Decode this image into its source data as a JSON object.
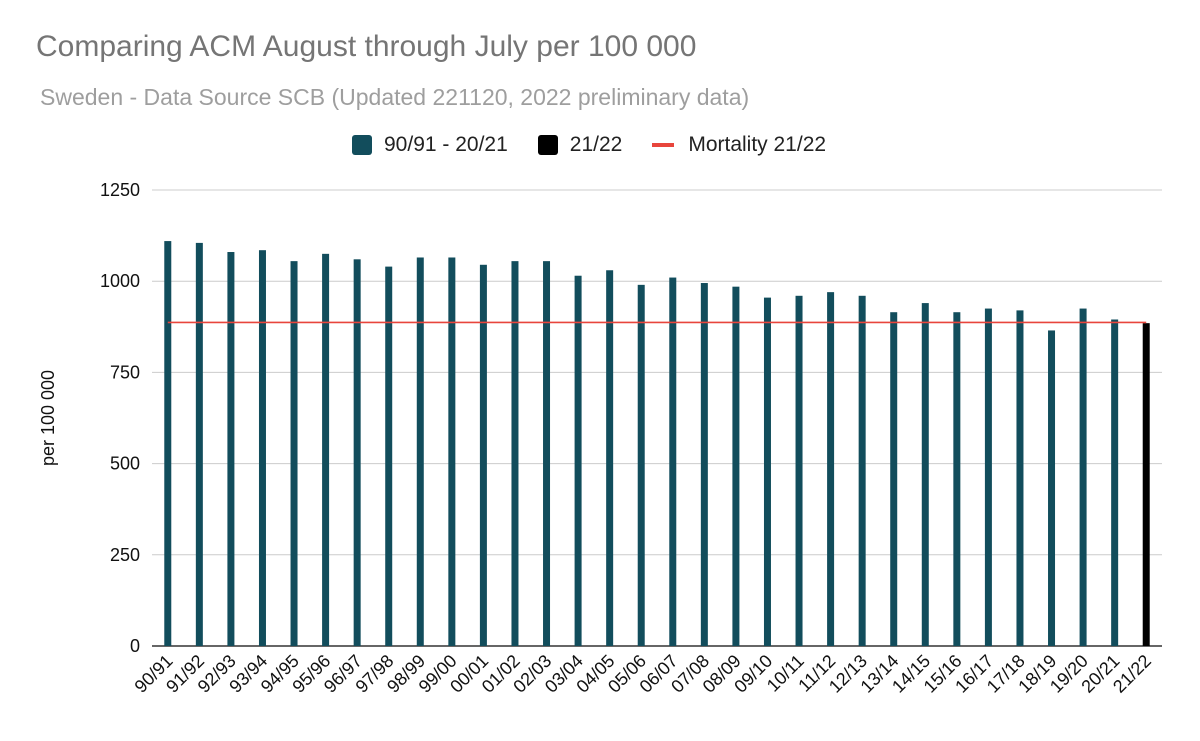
{
  "colors": {
    "series_historical": "#124d5c",
    "series_current": "#000000",
    "reference_line": "#e8453c",
    "gridline": "#cccccc"
  },
  "chart_data": {
    "type": "bar",
    "title": "Comparing ACM August through July per 100 000",
    "subtitle": "Sweden - Data Source SCB (Updated 221120, 2022 preliminary data)",
    "xlabel": "",
    "ylabel": "per 100 000",
    "ylim": [
      0,
      1250
    ],
    "yticks": [
      0,
      250,
      500,
      750,
      1000,
      1250
    ],
    "grid": true,
    "legend_position": "top",
    "categories": [
      "90/91",
      "91/92",
      "92/93",
      "93/94",
      "94/95",
      "95/96",
      "96/97",
      "97/98",
      "98/99",
      "99/00",
      "00/01",
      "01/02",
      "02/03",
      "03/04",
      "04/05",
      "05/06",
      "06/07",
      "07/08",
      "08/09",
      "09/10",
      "10/11",
      "11/12",
      "12/13",
      "13/14",
      "14/15",
      "15/16",
      "16/17",
      "17/18",
      "18/19",
      "19/20",
      "20/21",
      "21/22"
    ],
    "series": [
      {
        "name": "90/91 - 20/21",
        "values": [
          1110,
          1105,
          1080,
          1085,
          1055,
          1075,
          1060,
          1040,
          1065,
          1065,
          1045,
          1055,
          1055,
          1015,
          1030,
          990,
          1010,
          995,
          985,
          955,
          960,
          970,
          960,
          915,
          940,
          915,
          925,
          920,
          865,
          925,
          895,
          null
        ]
      },
      {
        "name": "21/22",
        "values": [
          null,
          null,
          null,
          null,
          null,
          null,
          null,
          null,
          null,
          null,
          null,
          null,
          null,
          null,
          null,
          null,
          null,
          null,
          null,
          null,
          null,
          null,
          null,
          null,
          null,
          null,
          null,
          null,
          null,
          null,
          null,
          885
        ]
      }
    ],
    "reference_line": {
      "name": "Mortality 21/22",
      "value": 887
    }
  }
}
